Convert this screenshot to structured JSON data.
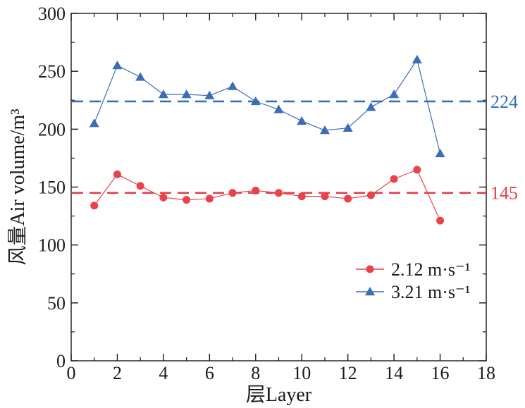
{
  "chart_data": {
    "type": "line",
    "xlabel": "层Layer",
    "ylabel": "风量Air volume/m³",
    "xlim": [
      0,
      18
    ],
    "ylim": [
      0,
      300
    ],
    "xticks": [
      0,
      2,
      4,
      6,
      8,
      10,
      12,
      14,
      16,
      18
    ],
    "yticks": [
      0,
      50,
      100,
      150,
      200,
      250,
      300
    ],
    "grid": false,
    "legend_position": "lower-right",
    "series": [
      {
        "name": "2.12 m·s⁻¹",
        "color": "#e8424b",
        "marker": "circle",
        "x": [
          1,
          2,
          3,
          4,
          5,
          6,
          7,
          8,
          9,
          10,
          11,
          12,
          13,
          14,
          15,
          16
        ],
        "values": [
          134,
          161,
          151,
          141,
          139,
          140,
          145,
          147,
          145,
          142,
          142,
          140,
          143,
          157,
          165,
          121
        ]
      },
      {
        "name": "3.21 m·s⁻¹",
        "color": "#3b6eb5",
        "marker": "triangle",
        "x": [
          1,
          2,
          3,
          4,
          5,
          6,
          7,
          8,
          9,
          10,
          11,
          12,
          13,
          14,
          15,
          16
        ],
        "values": [
          205,
          255,
          245,
          230,
          230,
          229,
          237,
          224,
          217,
          207,
          199,
          201,
          219,
          230,
          260,
          179
        ]
      }
    ],
    "reference_lines": [
      {
        "value": 224,
        "label": "224",
        "color": "#3b6eb5"
      },
      {
        "value": 145,
        "label": "145",
        "color": "#e8424b"
      }
    ]
  }
}
